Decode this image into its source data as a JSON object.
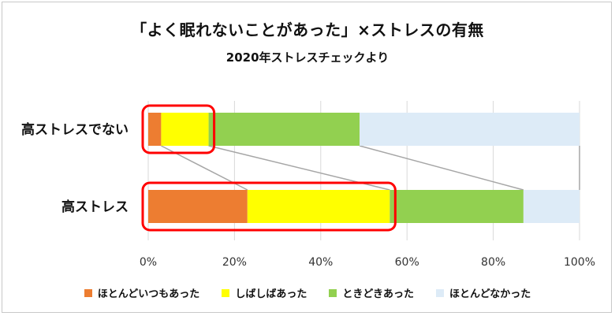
{
  "chart_data": {
    "type": "bar",
    "orientation": "horizontal",
    "stacked": "100%",
    "title": "「よく眠れないことがあった」×ストレスの有無",
    "subtitle": "2020年ストレスチェックより",
    "categories": [
      "高ストレスでない",
      "高ストレス"
    ],
    "series": [
      {
        "name": "ほとんどいつもあった",
        "color": "#ED7D31",
        "values": [
          3,
          23
        ]
      },
      {
        "name": "しばしばあった",
        "color": "#FFFF00",
        "values": [
          11,
          33
        ]
      },
      {
        "name": "ときどきあった",
        "color": "#92D050",
        "values": [
          35,
          31
        ]
      },
      {
        "name": "ほとんどなかった",
        "color": "#DDEBF7",
        "values": [
          51,
          13
        ]
      }
    ],
    "xlim": [
      0,
      100
    ],
    "xticks": [
      "0%",
      "20%",
      "40%",
      "60%",
      "80%",
      "100%"
    ],
    "grid": true,
    "legend": "bottom",
    "highlight": {
      "color": "#FF0000",
      "series_count": 2
    }
  }
}
